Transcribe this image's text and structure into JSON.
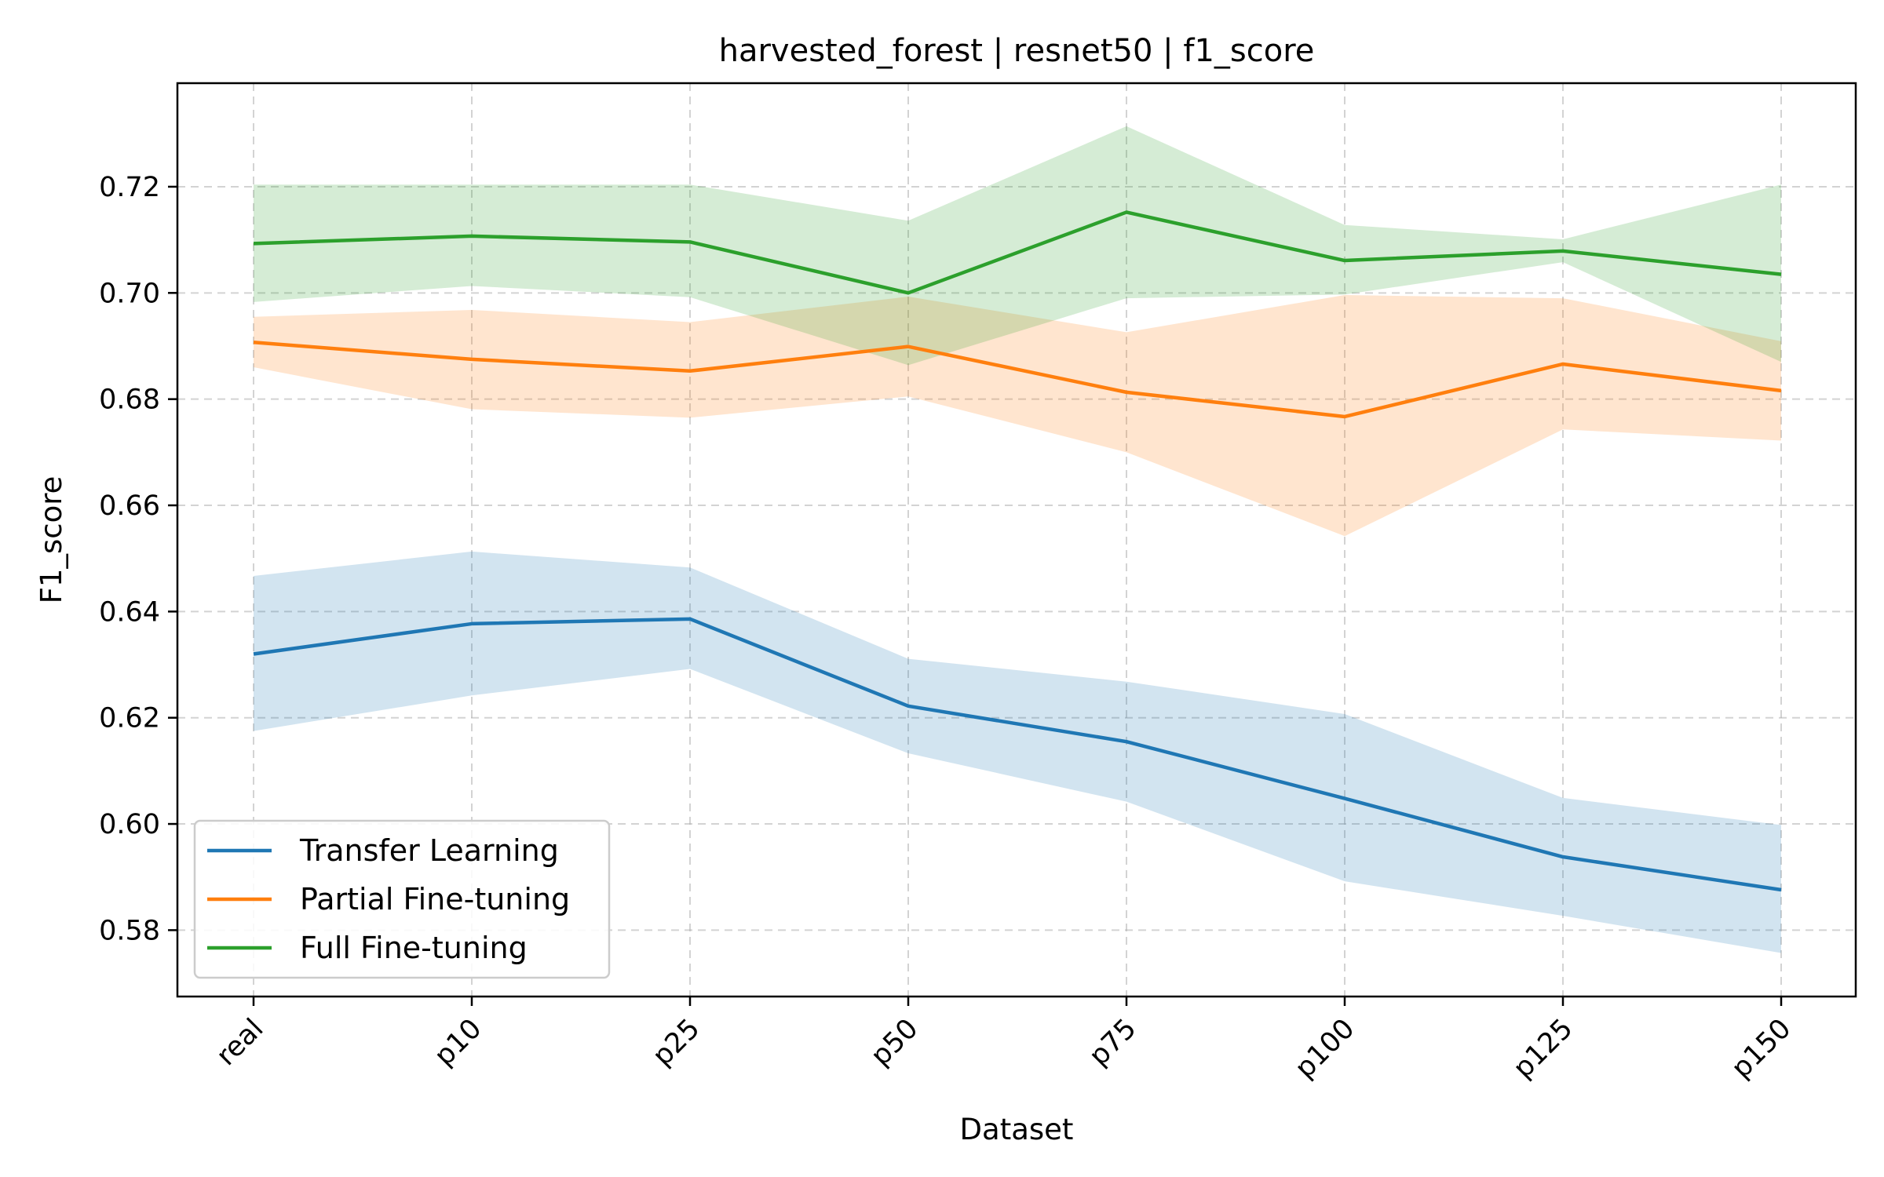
{
  "chart_data": {
    "type": "line",
    "title": "harvested_forest | resnet50 | f1_score",
    "xlabel": "Dataset",
    "ylabel": "F1_score",
    "categories": [
      "real",
      "p10",
      "p25",
      "p50",
      "p75",
      "p100",
      "p125",
      "p150"
    ],
    "ylim": [
      0.5675,
      0.7395
    ],
    "yticks": [
      "0.58",
      "0.60",
      "0.62",
      "0.64",
      "0.66",
      "0.68",
      "0.70",
      "0.72"
    ],
    "grid": true,
    "legend_position": "lower-left",
    "series": [
      {
        "name": "Transfer Learning",
        "color": "#1f77b4",
        "values": [
          0.632,
          0.6377,
          0.6386,
          0.6222,
          0.6155,
          0.6048,
          0.5938,
          0.5876
        ],
        "lower": [
          0.6175,
          0.6242,
          0.6292,
          0.6133,
          0.6042,
          0.5892,
          0.5827,
          0.5757
        ],
        "upper": [
          0.6467,
          0.6513,
          0.6483,
          0.6311,
          0.6268,
          0.6207,
          0.6049,
          0.5998
        ]
      },
      {
        "name": "Partial Fine-tuning",
        "color": "#ff7f0e",
        "values": [
          0.6907,
          0.6875,
          0.6853,
          0.6899,
          0.6813,
          0.6767,
          0.6866,
          0.6816
        ],
        "lower": [
          0.686,
          0.6781,
          0.6765,
          0.6805,
          0.67,
          0.6542,
          0.6743,
          0.6722
        ],
        "upper": [
          0.6955,
          0.6968,
          0.6945,
          0.6993,
          0.6926,
          0.6996,
          0.699,
          0.6909
        ]
      },
      {
        "name": "Full Fine-tuning",
        "color": "#2ca02c",
        "values": [
          0.7093,
          0.7107,
          0.7096,
          0.7,
          0.7152,
          0.7061,
          0.7079,
          0.7035
        ],
        "lower": [
          0.6983,
          0.7013,
          0.6992,
          0.6864,
          0.699,
          0.6997,
          0.7058,
          0.687
        ],
        "upper": [
          0.7204,
          0.7204,
          0.7204,
          0.7136,
          0.7314,
          0.7128,
          0.7101,
          0.7204
        ]
      }
    ]
  }
}
